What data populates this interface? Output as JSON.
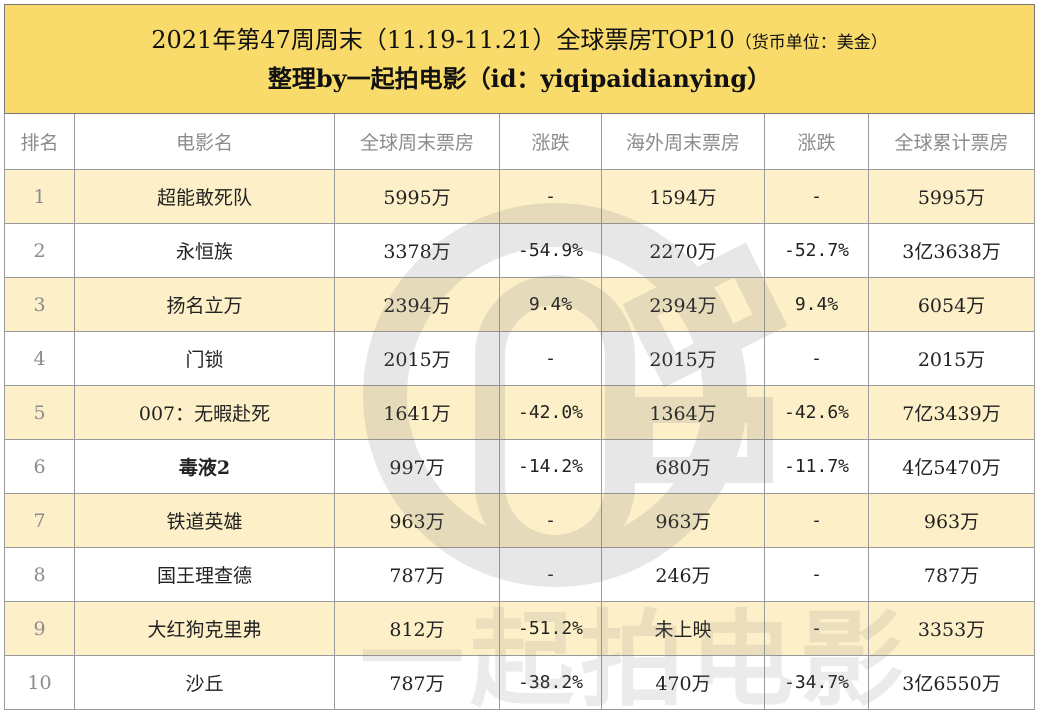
{
  "title": {
    "line1_main": "2021年第47周周末（11.19-11.21）全球票房TOP10",
    "line1_unit": "（货币单位：美金）",
    "line2": "整理by一起拍电影（id：yiqipaidianying）"
  },
  "watermark_text": "一起拍电影",
  "headers": [
    "排名",
    "电影名",
    "全球周末票房",
    "涨跌",
    "海外周末票房",
    "涨跌",
    "全球累计票房"
  ],
  "rows": [
    {
      "rank": "1",
      "name": "超能敢死队",
      "global_weekend": "5995万",
      "global_change": "-",
      "global_change_type": "flat",
      "overseas_weekend": "1594万",
      "overseas_change": "-",
      "overseas_change_type": "flat",
      "global_total": "5995万"
    },
    {
      "rank": "2",
      "name": "永恒族",
      "global_weekend": "3378万",
      "global_change": "-54.9%",
      "global_change_type": "neg",
      "overseas_weekend": "2270万",
      "overseas_change": "-52.7%",
      "overseas_change_type": "neg",
      "global_total": "3亿3638万"
    },
    {
      "rank": "3",
      "name": "扬名立万",
      "global_weekend": "2394万",
      "global_change": "9.4%",
      "global_change_type": "pos",
      "overseas_weekend": "2394万",
      "overseas_change": "9.4%",
      "overseas_change_type": "pos",
      "global_total": "6054万"
    },
    {
      "rank": "4",
      "name": "门锁",
      "global_weekend": "2015万",
      "global_change": "-",
      "global_change_type": "flat",
      "overseas_weekend": "2015万",
      "overseas_change": "-",
      "overseas_change_type": "flat",
      "global_total": "2015万"
    },
    {
      "rank": "5",
      "name": "007：无暇赴死",
      "global_weekend": "1641万",
      "global_change": "-42.0%",
      "global_change_type": "neg",
      "overseas_weekend": "1364万",
      "overseas_change": "-42.6%",
      "overseas_change_type": "neg",
      "global_total": "7亿3439万"
    },
    {
      "rank": "6",
      "name": "毒液2",
      "global_weekend": "997万",
      "global_change": "-14.2%",
      "global_change_type": "neg",
      "overseas_weekend": "680万",
      "overseas_change": "-11.7%",
      "overseas_change_type": "neg",
      "global_total": "4亿5470万"
    },
    {
      "rank": "7",
      "name": "铁道英雄",
      "global_weekend": "963万",
      "global_change": "-",
      "global_change_type": "flat",
      "overseas_weekend": "963万",
      "overseas_change": "-",
      "overseas_change_type": "flat",
      "global_total": "963万"
    },
    {
      "rank": "8",
      "name": "国王理查德",
      "global_weekend": "787万",
      "global_change": "-",
      "global_change_type": "flat",
      "overseas_weekend": "246万",
      "overseas_change": "-",
      "overseas_change_type": "flat",
      "global_total": "787万"
    },
    {
      "rank": "9",
      "name": "大红狗克里弗",
      "global_weekend": "812万",
      "global_change": "-51.2%",
      "global_change_type": "neg",
      "overseas_weekend": "未上映",
      "overseas_change": "-",
      "overseas_change_type": "flat",
      "global_total": "3353万"
    },
    {
      "rank": "10",
      "name": "沙丘",
      "global_weekend": "787万",
      "global_change": "-38.2%",
      "global_change_type": "neg",
      "overseas_weekend": "470万",
      "overseas_change": "-34.7%",
      "overseas_change_type": "neg",
      "global_total": "3亿6550万"
    }
  ],
  "colors": {
    "title_bg": "#f8db6a",
    "odd_row_bg": "#fdf0c8",
    "negative": "#e8303a",
    "positive": "#3fa9dc",
    "header_text": "#8c8c8c"
  }
}
